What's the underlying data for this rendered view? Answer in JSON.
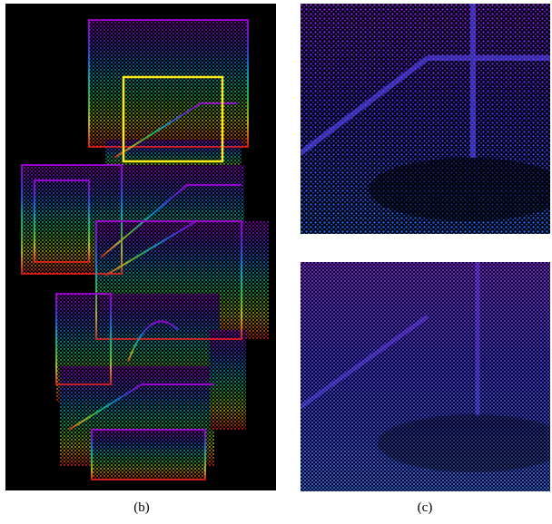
{
  "figure": {
    "caption_b": "(b)",
    "caption_c": "(c)",
    "highlight_color": "#ffe81a",
    "background_color": "#000000",
    "colormap": [
      "#b400ff",
      "#5a2dff",
      "#1f6bff",
      "#12c8d8",
      "#20e07a",
      "#5ae02a",
      "#d8e020",
      "#ff8a1a",
      "#ff2a1a"
    ]
  }
}
